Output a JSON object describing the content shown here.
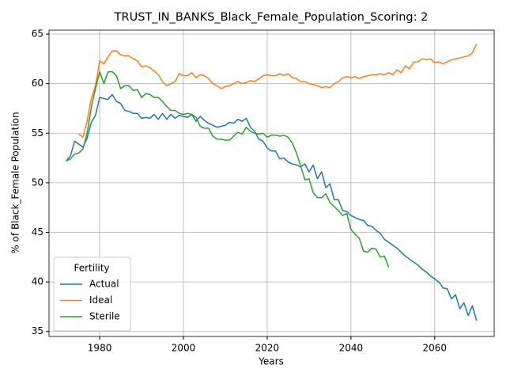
{
  "chart_data": {
    "type": "line",
    "title": "TRUST_IN_BANKS_Black_Female_Population_Scoring: 2",
    "xlabel": "Years",
    "ylabel": "% of Black_Female Population",
    "legend_title": "Fertility",
    "legend": "lower left",
    "grid": true,
    "xlim": [
      1967.9,
      2074.2
    ],
    "ylim": [
      34.5,
      65.4
    ],
    "xticks": [
      1980,
      2000,
      2020,
      2040,
      2060
    ],
    "yticks": [
      35,
      40,
      45,
      50,
      55,
      60,
      65
    ],
    "x": [
      1972,
      1973,
      1974,
      1975,
      1976,
      1977,
      1978,
      1979,
      1980,
      1981,
      1982,
      1983,
      1984,
      1985,
      1986,
      1987,
      1988,
      1989,
      1990,
      1991,
      1992,
      1993,
      1994,
      1995,
      1996,
      1997,
      1998,
      1999,
      2000,
      2001,
      2002,
      2003,
      2004,
      2005,
      2006,
      2007,
      2008,
      2009,
      2010,
      2011,
      2012,
      2013,
      2014,
      2015,
      2016,
      2017,
      2018,
      2019,
      2020,
      2021,
      2022,
      2023,
      2024,
      2025,
      2026,
      2027,
      2028,
      2029,
      2030,
      2031,
      2032,
      2033,
      2034,
      2035,
      2036,
      2037,
      2038,
      2039,
      2040,
      2041,
      2042,
      2043,
      2044,
      2045,
      2046,
      2047,
      2048,
      2049,
      2050,
      2051,
      2052,
      2053,
      2054,
      2055,
      2056,
      2057,
      2058,
      2059,
      2060,
      2061,
      2062,
      2063,
      2064,
      2065,
      2066,
      2067,
      2068,
      2069,
      2070
    ],
    "series": [
      {
        "name": "Actual",
        "color": "#1f77b4",
        "values": [
          52.2,
          52.7,
          54.2,
          53.9,
          53.6,
          54.5,
          56.1,
          56.8,
          58.6,
          58.5,
          58.4,
          58.9,
          58.2,
          58.0,
          57.3,
          57.2,
          57.0,
          57.0,
          56.5,
          56.6,
          56.5,
          56.9,
          56.4,
          57.0,
          56.4,
          56.9,
          56.5,
          56.8,
          56.7,
          56.6,
          56.9,
          56.2,
          56.7,
          56.3,
          56.0,
          55.8,
          55.6,
          55.7,
          55.8,
          56.1,
          56.0,
          56.4,
          56.2,
          56.5,
          55.6,
          55.2,
          54.4,
          54.2,
          53.5,
          53.2,
          53.2,
          52.4,
          52.5,
          52.1,
          51.9,
          51.8,
          51.6,
          51.9,
          51.1,
          51.8,
          50.4,
          51.1,
          49.5,
          49.9,
          48.3,
          48.3,
          47.2,
          47.1,
          46.7,
          46.5,
          46.3,
          46.2,
          45.7,
          45.6,
          45.2,
          44.9,
          44.3,
          44.0,
          43.7,
          43.4,
          43.0,
          42.6,
          42.3,
          42.0,
          41.7,
          41.3,
          41.0,
          40.6,
          40.3,
          40.0,
          39.4,
          39.3,
          38.3,
          38.7,
          37.3,
          37.9,
          36.6,
          37.6,
          36.1
        ]
      },
      {
        "name": "Ideal",
        "color": "#ff7f0e",
        "values": [
          null,
          null,
          null,
          54.9,
          54.6,
          56.2,
          58.5,
          59.8,
          62.3,
          62.0,
          62.7,
          63.3,
          63.3,
          62.9,
          62.8,
          62.8,
          62.5,
          62.3,
          61.7,
          61.8,
          61.6,
          61.3,
          60.9,
          60.2,
          59.8,
          60.0,
          60.2,
          61.0,
          60.8,
          60.8,
          61.1,
          60.6,
          60.9,
          60.8,
          60.5,
          60.0,
          59.8,
          59.5,
          59.7,
          59.8,
          60.0,
          60.2,
          60.0,
          60.1,
          60.3,
          60.2,
          60.5,
          60.8,
          60.9,
          60.8,
          60.8,
          61.0,
          60.8,
          61.0,
          60.6,
          60.5,
          60.2,
          60.2,
          60.0,
          59.9,
          59.8,
          59.6,
          59.7,
          59.6,
          60.0,
          60.2,
          60.6,
          60.7,
          60.6,
          60.7,
          60.5,
          60.7,
          60.8,
          60.9,
          60.9,
          61.0,
          60.9,
          61.1,
          60.9,
          61.4,
          61.1,
          61.8,
          61.5,
          62.2,
          62.2,
          62.5,
          62.4,
          62.5,
          62.1,
          62.2,
          62.0,
          62.2,
          62.4,
          62.5,
          62.6,
          62.7,
          62.8,
          63.1,
          64.0
        ]
      },
      {
        "name": "Sterile",
        "color": "#2ca02c",
        "values": [
          52.2,
          52.4,
          52.9,
          53.0,
          53.4,
          55.0,
          57.6,
          59.5,
          61.2,
          60.0,
          61.2,
          61.2,
          60.8,
          59.5,
          59.8,
          59.8,
          59.3,
          59.4,
          58.6,
          59.0,
          58.9,
          58.6,
          58.6,
          58.2,
          57.7,
          57.3,
          57.3,
          57.0,
          56.9,
          57.0,
          56.9,
          56.6,
          55.7,
          55.5,
          55.5,
          54.7,
          54.4,
          54.4,
          54.3,
          54.3,
          54.7,
          55.1,
          54.9,
          55.6,
          55.2,
          55.0,
          54.9,
          55.0,
          54.6,
          54.8,
          54.8,
          54.7,
          54.8,
          54.6,
          54.0,
          53.0,
          51.7,
          50.3,
          50.4,
          49.0,
          48.5,
          48.5,
          48.9,
          48.0,
          47.6,
          47.2,
          46.7,
          46.9,
          45.3,
          44.8,
          44.4,
          43.1,
          43.0,
          43.4,
          43.3,
          42.5,
          42.6,
          41.5,
          null,
          null,
          null,
          null,
          null,
          null,
          null,
          null,
          null,
          null,
          null,
          null,
          null,
          null,
          null,
          null,
          null,
          null,
          null,
          null,
          null
        ]
      }
    ]
  }
}
